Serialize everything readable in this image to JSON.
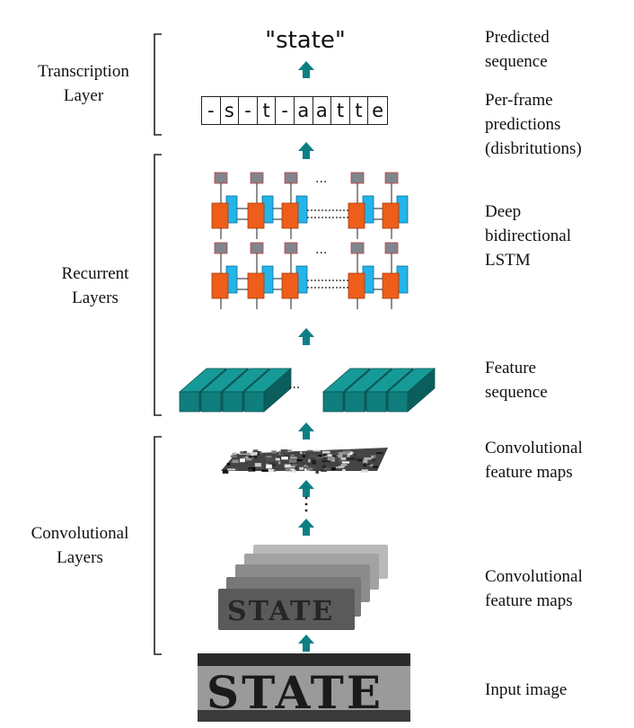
{
  "left_labels": {
    "transcription": [
      "Transcription",
      "Layer"
    ],
    "recurrent": [
      "Recurrent",
      "Layers"
    ],
    "convolutional": [
      "Convolutional",
      "Layers"
    ]
  },
  "right_labels": {
    "predicted": [
      "Predicted",
      "sequence"
    ],
    "per_frame": [
      "Per-frame",
      "predictions",
      "(disbritutions)"
    ],
    "lstm": [
      "Deep",
      "bidirectional",
      "LSTM"
    ],
    "feature_seq": [
      "Feature",
      "sequence"
    ],
    "conv_maps_top": [
      "Convolutional",
      "feature maps"
    ],
    "conv_maps_bottom": [
      "Convolutional",
      "feature maps"
    ],
    "input": [
      "Input image"
    ]
  },
  "predicted_text": "\"state\"",
  "frames": [
    "-",
    "s",
    "-",
    "t",
    "-",
    "a",
    "a",
    "t",
    "t",
    "e"
  ],
  "ellipsis": "...",
  "ellipsis_dots": "···",
  "input_word": "STATE",
  "colors": {
    "arrow": "#0d7f84",
    "feature_block": "#0f7e7c",
    "lstm_orange": "#ee5e1a",
    "lstm_blue": "#23b5ea",
    "lstm_gray": "#7f858c",
    "bracket": "#222222"
  }
}
